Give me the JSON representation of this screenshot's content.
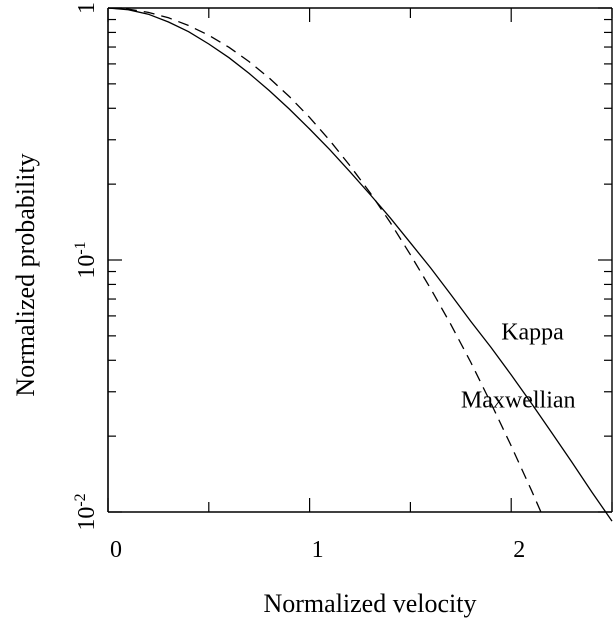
{
  "chart_data": {
    "type": "line",
    "xlabel": "Normalized velocity",
    "ylabel": "Normalized probability",
    "yscale": "log",
    "xlim": [
      0,
      2.5
    ],
    "ylim": [
      0.01,
      1
    ],
    "x_ticks": [
      {
        "value": 0,
        "label": "0"
      },
      {
        "value": 1,
        "label": "1"
      },
      {
        "value": 2,
        "label": "2"
      }
    ],
    "y_ticks": [
      {
        "value": 1,
        "base": "1",
        "exp": ""
      },
      {
        "value": 0.1,
        "base": "10",
        "exp": "-1"
      },
      {
        "value": 0.01,
        "base": "10",
        "exp": "-2"
      }
    ],
    "grid": false,
    "series": [
      {
        "name": "Kappa",
        "style": "solid",
        "color": "#000000",
        "x": [
          0,
          0.1,
          0.2,
          0.3,
          0.4,
          0.5,
          0.6,
          0.7,
          0.8,
          0.9,
          1.0,
          1.1,
          1.2,
          1.3,
          1.4,
          1.5,
          1.6,
          1.7,
          1.8,
          1.9,
          2.0,
          2.1,
          2.2,
          2.3,
          2.4,
          2.5
        ],
        "y": [
          1.0,
          0.985,
          0.945,
          0.88,
          0.805,
          0.72,
          0.635,
          0.55,
          0.47,
          0.397,
          0.331,
          0.274,
          0.224,
          0.182,
          0.147,
          0.117,
          0.093,
          0.073,
          0.057,
          0.045,
          0.035,
          0.027,
          0.0207,
          0.0158,
          0.012,
          0.0092
        ]
      },
      {
        "name": "Maxwellian",
        "style": "dashed",
        "color": "#000000",
        "x": [
          0,
          0.1,
          0.2,
          0.3,
          0.4,
          0.5,
          0.6,
          0.7,
          0.8,
          0.9,
          1.0,
          1.1,
          1.2,
          1.3,
          1.4,
          1.5,
          1.6,
          1.7,
          1.8,
          1.9,
          2.0,
          2.1,
          2.15
        ],
        "y": [
          1.0,
          0.99,
          0.961,
          0.914,
          0.852,
          0.779,
          0.698,
          0.613,
          0.527,
          0.445,
          0.368,
          0.298,
          0.237,
          0.185,
          0.141,
          0.105,
          0.077,
          0.0556,
          0.0392,
          0.027,
          0.0183,
          0.0122,
          0.0099
        ]
      }
    ],
    "annotations": [
      {
        "text": "Kappa",
        "x": 2.0,
        "y": 0.052
      },
      {
        "text": "Maxwellian",
        "x": 1.8,
        "y": 0.028
      }
    ]
  }
}
